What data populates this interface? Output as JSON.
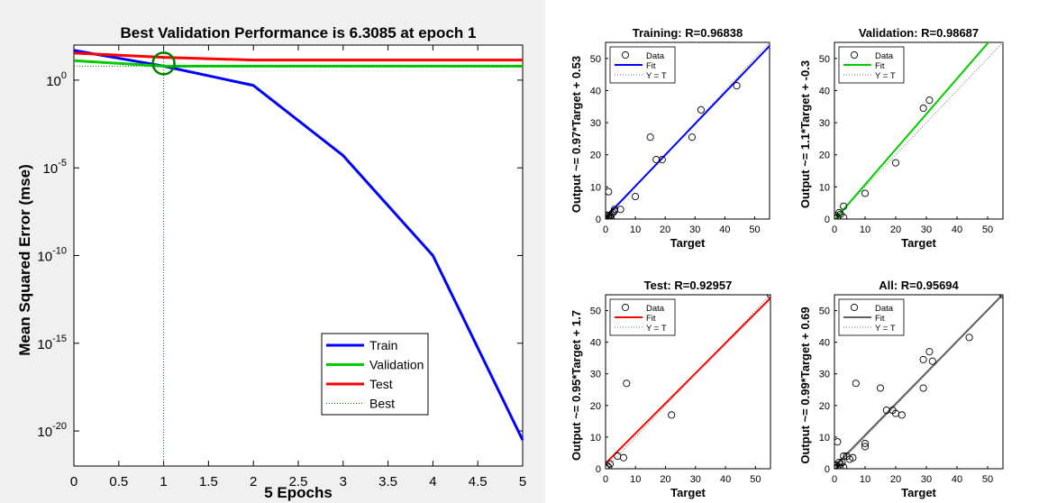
{
  "colors": {
    "train": "#0000ff",
    "validation": "#00cc00",
    "test": "#ff0000",
    "best": "#008000",
    "all": "#606060",
    "frame": "#000000"
  },
  "chart_data": [
    {
      "type": "line",
      "title": "Best Validation Performance is 6.3085 at epoch 1",
      "xlabel": "5 Epochs",
      "ylabel": "Mean Squared Error  (mse)",
      "yscale": "log",
      "xlim": [
        0,
        5
      ],
      "ylim_exp": [
        -22,
        2
      ],
      "xticks": [
        "0",
        "0.5",
        "1",
        "1.5",
        "2",
        "2.5",
        "3",
        "3.5",
        "4",
        "4.5",
        "5"
      ],
      "yticks": [
        {
          "value": 1,
          "base": "10",
          "exp": "0"
        },
        {
          "value": 1e-05,
          "base": "10",
          "exp": "-5"
        },
        {
          "value": 1e-10,
          "base": "10",
          "exp": "-10"
        },
        {
          "value": 1e-15,
          "base": "10",
          "exp": "-15"
        },
        {
          "value": 1e-20,
          "base": "10",
          "exp": "-20"
        }
      ],
      "x": [
        0,
        1,
        2,
        3,
        4,
        5
      ],
      "series": [
        {
          "name": "Train",
          "values": [
            50,
            6.3,
            0.5,
            5e-05,
            1e-10,
            3e-21
          ]
        },
        {
          "name": "Validation",
          "values": [
            13,
            6.3,
            6.3,
            6.3,
            6.3,
            6.3
          ]
        },
        {
          "name": "Test",
          "values": [
            35,
            20,
            14,
            14,
            14,
            14
          ]
        }
      ],
      "best": {
        "name": "Best",
        "epoch": 1,
        "value": 6.3085
      },
      "legend_position": "bottom-right"
    },
    {
      "type": "scatter",
      "title": "Training: R=0.96838",
      "xlabel": "Target",
      "ylabel": "Output ~= 0.97*Target + 0.53",
      "fit": {
        "slope": 0.97,
        "intercept": 0.53
      },
      "xlim": [
        0,
        55
      ],
      "ylim": [
        0,
        55
      ],
      "xticks": [
        "0",
        "10",
        "20",
        "30",
        "40",
        "50"
      ],
      "yticks": [
        "0",
        "10",
        "20",
        "30",
        "40",
        "50"
      ],
      "legend": [
        "Data",
        "Fit",
        "Y = T"
      ],
      "legend_position": "top-left",
      "points": [
        [
          0,
          0.5
        ],
        [
          0.5,
          0
        ],
        [
          1,
          1
        ],
        [
          1,
          0.3
        ],
        [
          1.5,
          0.8
        ],
        [
          2,
          1.5
        ],
        [
          2.5,
          2
        ],
        [
          3,
          2.5
        ],
        [
          1,
          8.5
        ],
        [
          5,
          3
        ],
        [
          3,
          3
        ],
        [
          10,
          7
        ],
        [
          15,
          25.5
        ],
        [
          17,
          18.5
        ],
        [
          19,
          18.5
        ],
        [
          29,
          25.5
        ],
        [
          32,
          34
        ],
        [
          44,
          41.5
        ],
        [
          0.3,
          1.2
        ],
        [
          1.8,
          0.5
        ]
      ]
    },
    {
      "type": "scatter",
      "title": "Validation: R=0.98687",
      "xlabel": "Target",
      "ylabel": "Output ~= 1.1*Target + -0.3",
      "fit": {
        "slope": 1.1,
        "intercept": -0.3
      },
      "xlim": [
        0,
        55
      ],
      "ylim": [
        0,
        55
      ],
      "xticks": [
        "0",
        "10",
        "20",
        "30",
        "40",
        "50"
      ],
      "yticks": [
        "0",
        "10",
        "20",
        "30",
        "40",
        "50"
      ],
      "legend": [
        "Data",
        "Fit",
        "Y = T"
      ],
      "legend_position": "top-left",
      "points": [
        [
          0,
          0.3
        ],
        [
          0.5,
          1
        ],
        [
          1,
          0.5
        ],
        [
          1.5,
          2
        ],
        [
          2,
          1.5
        ],
        [
          3,
          0.5
        ],
        [
          3,
          4
        ],
        [
          10,
          8
        ],
        [
          20,
          17.5
        ],
        [
          29,
          34.5
        ],
        [
          31,
          37
        ]
      ]
    },
    {
      "type": "scatter",
      "title": "Test: R=0.92957",
      "xlabel": "Target",
      "ylabel": "Output ~= 0.95*Target + 1.7",
      "fit": {
        "slope": 0.95,
        "intercept": 1.7
      },
      "xlim": [
        0,
        55
      ],
      "ylim": [
        0,
        55
      ],
      "xticks": [
        "0",
        "10",
        "20",
        "30",
        "40",
        "50"
      ],
      "yticks": [
        "0",
        "10",
        "20",
        "30",
        "40",
        "50"
      ],
      "legend": [
        "Data",
        "Fit",
        "Y = T"
      ],
      "legend_position": "top-left",
      "points": [
        [
          0,
          0.3
        ],
        [
          0.5,
          1
        ],
        [
          1,
          0.5
        ],
        [
          1.5,
          1.5
        ],
        [
          4,
          4
        ],
        [
          6,
          3.5
        ],
        [
          7,
          27
        ],
        [
          22,
          17
        ],
        [
          55,
          55
        ]
      ]
    },
    {
      "type": "scatter",
      "title": "All: R=0.95694",
      "xlabel": "Target",
      "ylabel": "Output ~= 0.99*Target + 0.69",
      "fit": {
        "slope": 0.99,
        "intercept": 0.69
      },
      "xlim": [
        0,
        55
      ],
      "ylim": [
        0,
        55
      ],
      "xticks": [
        "0",
        "10",
        "20",
        "30",
        "40",
        "50"
      ],
      "yticks": [
        "0",
        "10",
        "20",
        "30",
        "40",
        "50"
      ],
      "legend": [
        "Data",
        "Fit",
        "Y = T"
      ],
      "legend_position": "top-left",
      "points": [
        [
          0,
          0.3
        ],
        [
          0.5,
          1
        ],
        [
          1,
          0.5
        ],
        [
          1.5,
          2
        ],
        [
          2,
          1.5
        ],
        [
          3,
          0.5
        ],
        [
          1,
          8.5
        ],
        [
          3,
          4
        ],
        [
          4,
          4
        ],
        [
          5,
          3
        ],
        [
          6,
          3.5
        ],
        [
          7,
          27
        ],
        [
          10,
          7
        ],
        [
          10,
          8
        ],
        [
          15,
          25.5
        ],
        [
          17,
          18.5
        ],
        [
          19,
          18.5
        ],
        [
          20,
          17.5
        ],
        [
          22,
          17
        ],
        [
          29,
          25.5
        ],
        [
          29,
          34.5
        ],
        [
          31,
          37
        ],
        [
          32,
          34
        ],
        [
          44,
          41.5
        ],
        [
          55,
          55
        ],
        [
          0.3,
          1.2
        ],
        [
          1.8,
          0.5
        ],
        [
          2.5,
          2
        ]
      ]
    }
  ]
}
